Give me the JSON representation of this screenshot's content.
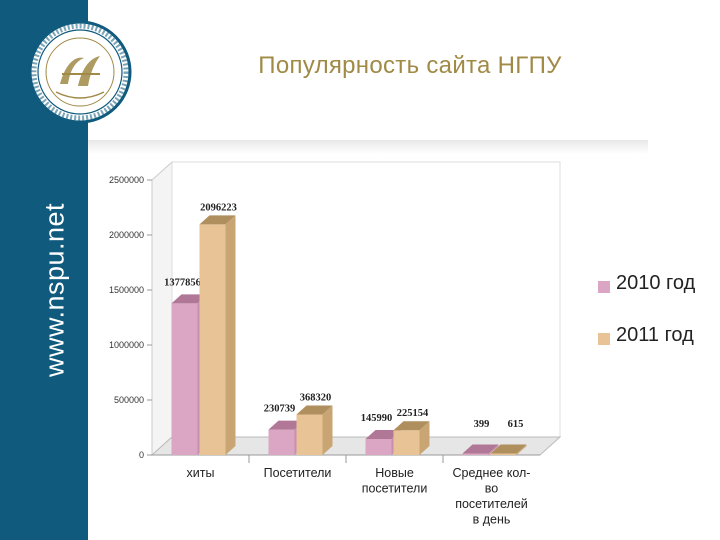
{
  "sidebar": {
    "url_text": "www.nspu.net"
  },
  "page": {
    "title": "Популярность сайта НГПУ"
  },
  "colors": {
    "sidebar": "#0f5a7d",
    "title": "#a08a46",
    "series_2010": "#dba6c3",
    "series_2011": "#e8c396"
  },
  "chart_data": {
    "type": "bar",
    "categories": [
      [
        "хиты"
      ],
      [
        "Посетители"
      ],
      [
        "Новые",
        "посетители"
      ],
      [
        "Среднее кол-",
        "во",
        "посетителей",
        "в день"
      ]
    ],
    "series": [
      {
        "name": "2010 год",
        "values": [
          1377856,
          230739,
          145990,
          399
        ]
      },
      {
        "name": "2011 год",
        "values": [
          2096223,
          368320,
          225154,
          615
        ]
      }
    ],
    "ylim": [
      0,
      2500000
    ],
    "yticks": [
      "0",
      "500000",
      "1000000",
      "1500000",
      "2000000",
      "2500000"
    ],
    "grid": false,
    "legend": "right",
    "three_d": true
  }
}
